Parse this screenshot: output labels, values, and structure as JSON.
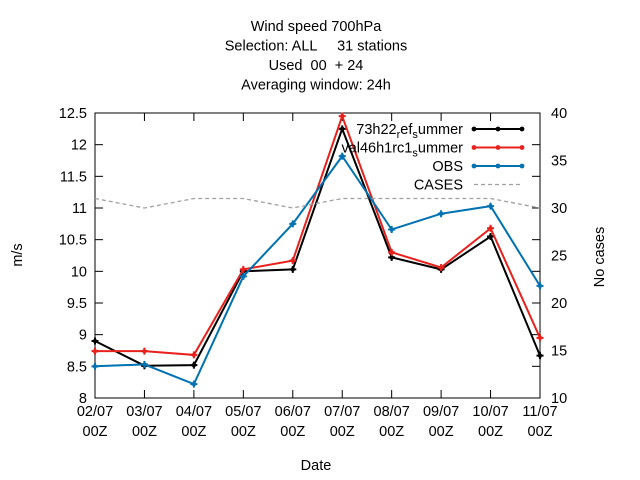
{
  "chart_data": {
    "type": "line",
    "title_lines": [
      "Wind speed 700hPa",
      "Selection: ALL     31 stations",
      "Used  00  + 24",
      "Averaging window: 24h"
    ],
    "xlabel": "Date",
    "ylabel": "m/s",
    "y2label": "No cases",
    "categories": [
      [
        "02/07",
        "00Z"
      ],
      [
        "03/07",
        "00Z"
      ],
      [
        "04/07",
        "00Z"
      ],
      [
        "05/07",
        "00Z"
      ],
      [
        "06/07",
        "00Z"
      ],
      [
        "07/07",
        "00Z"
      ],
      [
        "08/07",
        "00Z"
      ],
      [
        "09/07",
        "00Z"
      ],
      [
        "10/07",
        "00Z"
      ],
      [
        "11/07",
        "00Z"
      ]
    ],
    "ylim": [
      8,
      12.5
    ],
    "yticks": [
      "8",
      "8.5",
      "9",
      "9.5",
      "10",
      "10.5",
      "11",
      "11.5",
      "12",
      "12.5"
    ],
    "y2lim": [
      10,
      40
    ],
    "y2ticks": [
      "10",
      "15",
      "20",
      "25",
      "30",
      "35",
      "40"
    ],
    "grid": false,
    "legend_position": "top-right",
    "series": [
      {
        "name": "73h22_ref_summer",
        "legend_parts": [
          [
            "73h22",
            ""
          ],
          [
            "r",
            "sub"
          ],
          [
            "ef",
            ""
          ],
          [
            "s",
            "sub"
          ],
          [
            "ummer",
            ""
          ]
        ],
        "color": "#000000",
        "axis": "y",
        "style": "solid",
        "values": [
          8.9,
          8.51,
          8.52,
          10.0,
          10.03,
          12.25,
          10.22,
          10.03,
          10.55,
          8.67
        ]
      },
      {
        "name": "val46h1rc1_summer",
        "legend_parts": [
          [
            "val46h1rc1",
            ""
          ],
          [
            "s",
            "sub"
          ],
          [
            "ummer",
            ""
          ]
        ],
        "color": "#e8211d",
        "axis": "y",
        "style": "solid",
        "values": [
          8.74,
          8.74,
          8.68,
          10.03,
          10.17,
          12.45,
          10.3,
          10.06,
          10.68,
          8.95
        ]
      },
      {
        "name": "OBS",
        "legend_parts": [
          [
            "OBS",
            ""
          ]
        ],
        "color": "#0072b2",
        "axis": "y",
        "style": "solid",
        "values": [
          8.5,
          8.53,
          8.22,
          9.92,
          10.75,
          11.82,
          10.66,
          10.91,
          11.03,
          9.77
        ]
      },
      {
        "name": "CASES",
        "legend_parts": [
          [
            "CASES",
            ""
          ]
        ],
        "color": "#a0a0a0",
        "axis": "y2",
        "style": "dashed",
        "values": [
          31,
          30,
          31,
          31,
          30,
          31,
          31,
          31,
          31,
          30
        ]
      }
    ]
  }
}
